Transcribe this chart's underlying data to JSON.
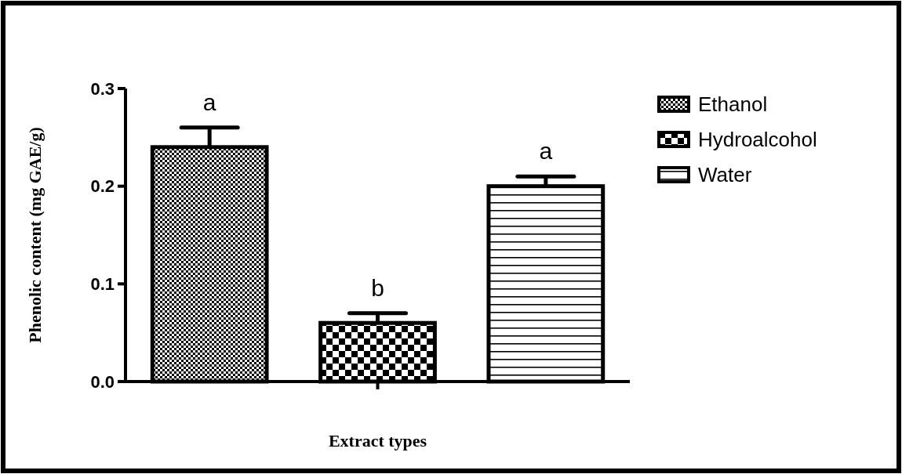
{
  "chart_data": {
    "type": "bar",
    "categories": [
      null
    ],
    "series": [
      {
        "name": "Ethanol",
        "color": "#000000",
        "values": [
          0.24
        ],
        "errors": [
          0.02
        ]
      },
      {
        "name": "Hydroalcohol",
        "color": "#000000",
        "values": [
          0.06
        ],
        "errors": [
          0.01
        ]
      },
      {
        "name": "Water",
        "color": "#000000",
        "values": [
          0.2
        ],
        "errors": [
          0.01
        ]
      }
    ],
    "ylim": [
      0,
      0.3
    ],
    "yticks": [
      {
        "value": 0,
        "label": "0.0"
      },
      0.1,
      0.2,
      0.3
    ],
    "ylabel": "Phenolic content (mg GAE/g)",
    "xlabel": "Extract types",
    "annotations": [
      "a",
      "b",
      "a"
    ],
    "legend": "top right"
  }
}
